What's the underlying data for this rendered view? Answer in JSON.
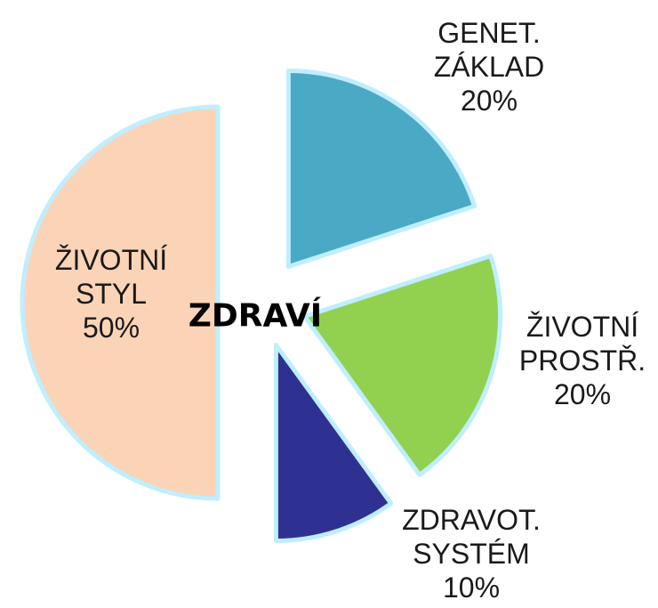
{
  "chart_data": {
    "type": "pie",
    "center_label": "ZDRAVÍ",
    "categories": [
      "GENET. ZÁKLAD",
      "ŽIVOTNÍ PROSTŘ.",
      "ZDRAVOT. SYSTÉM",
      "ŽIVOTNÍ STYL"
    ],
    "values": [
      20,
      20,
      10,
      50
    ],
    "value_labels": [
      "20%",
      "20%",
      "10%",
      "50%"
    ],
    "colors": [
      "#4aa9c5",
      "#92d050",
      "#2e3192",
      "#fbd4b7"
    ]
  }
}
